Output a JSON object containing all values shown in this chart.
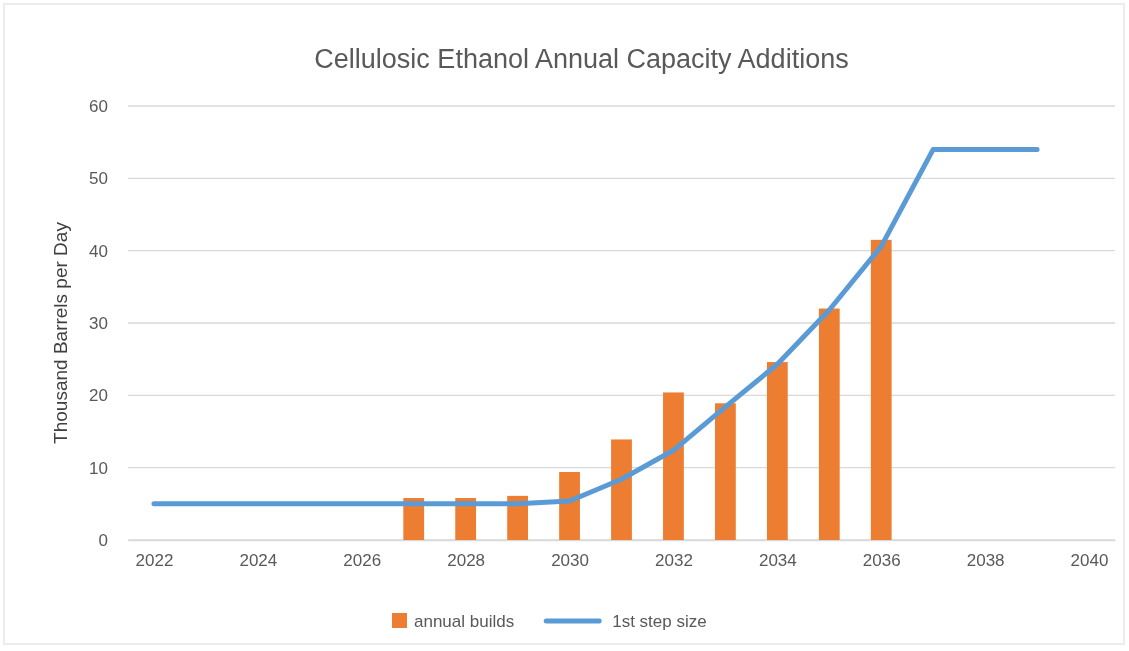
{
  "chart_data": {
    "type": "bar",
    "title": "Cellulosic Ethanol Annual Capacity Additions",
    "ylabel": "Thousand Barrels per Day",
    "x": [
      2022,
      2023,
      2024,
      2025,
      2026,
      2027,
      2028,
      2029,
      2030,
      2031,
      2032,
      2033,
      2034,
      2035,
      2036,
      2037,
      2038,
      2039
    ],
    "series": [
      {
        "name": "annual builds",
        "color": "#ed7d31",
        "values": [
          null,
          null,
          null,
          null,
          null,
          5.8,
          5.8,
          6.1,
          9.4,
          13.9,
          20.4,
          18.9,
          24.6,
          32,
          41.5,
          null,
          null,
          null
        ]
      },
      {
        "name": "1st step size",
        "type": "line",
        "color": "#5b9bd5",
        "values": [
          5,
          5,
          5,
          5,
          5,
          5,
          5,
          5,
          5.4,
          8.4,
          12.4,
          18.4,
          24.3,
          31.8,
          40.6,
          54,
          54,
          54
        ]
      }
    ],
    "xlim": [
      2021.5,
      2040.5
    ],
    "xticks": [
      2022,
      2024,
      2026,
      2028,
      2030,
      2032,
      2034,
      2036,
      2038,
      2040
    ],
    "ylim": [
      0,
      60
    ],
    "yticks": [
      0,
      10,
      20,
      30,
      40,
      50,
      60
    ],
    "grid": "y",
    "legend": "bottom"
  }
}
